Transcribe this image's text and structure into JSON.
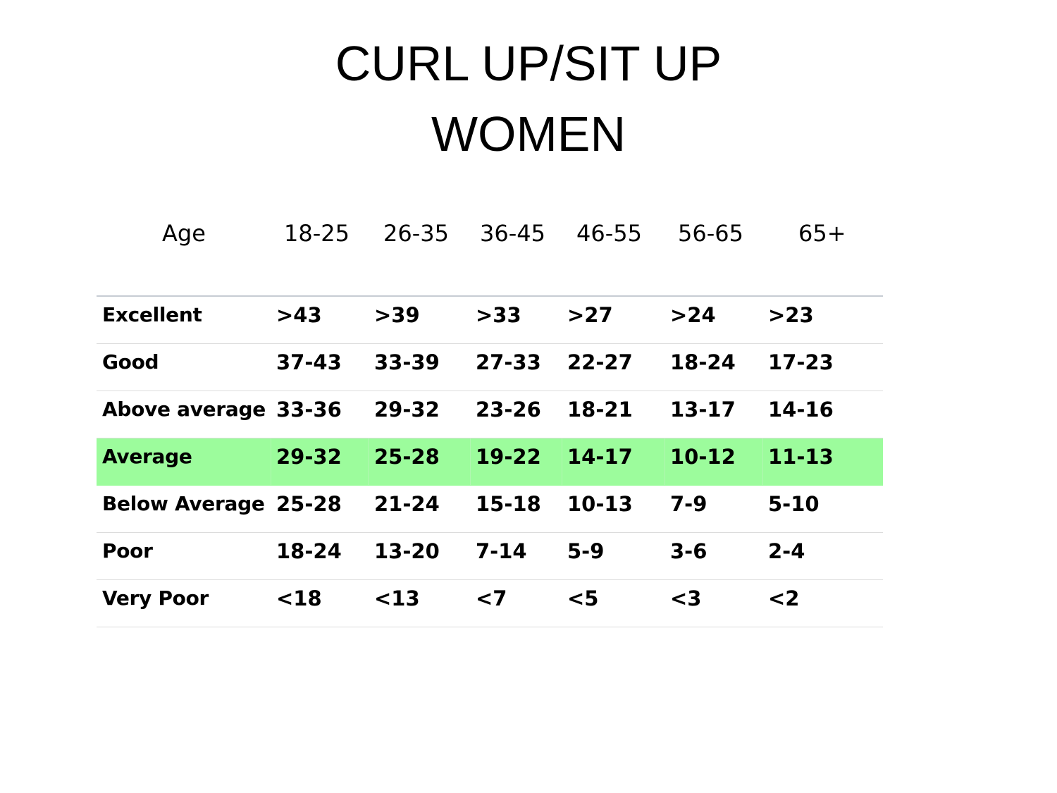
{
  "title": {
    "line1": "CURL UP/SIT UP",
    "line2": "WOMEN"
  },
  "age_header": {
    "label": "Age",
    "groups": [
      "18-25",
      "26-35",
      "36-45",
      "46-55",
      "56-65",
      "65+"
    ]
  },
  "table": {
    "highlight_color": "#9cfc9c",
    "rows": [
      {
        "label": "Excellent",
        "values": [
          ">43",
          ">39",
          ">33",
          ">27",
          ">24",
          ">23"
        ]
      },
      {
        "label": "Good",
        "values": [
          "37-43",
          "33-39",
          "27-33",
          "22-27",
          "18-24",
          "17-23"
        ]
      },
      {
        "label": "Above average",
        "values": [
          "33-36",
          "29-32",
          "23-26",
          "18-21",
          "13-17",
          "14-16"
        ]
      },
      {
        "label": "Average",
        "values": [
          "29-32",
          "25-28",
          "19-22",
          "14-17",
          "10-12",
          "11-13"
        ],
        "highlighted": true
      },
      {
        "label": "Below Average",
        "values": [
          "25-28",
          "21-24",
          "15-18",
          "10-13",
          "7-9",
          "5-10"
        ]
      },
      {
        "label": "Poor",
        "values": [
          "18-24",
          "13-20",
          "7-14",
          "5-9",
          "3-6",
          "2-4"
        ]
      },
      {
        "label": "Very Poor",
        "values": [
          "<18",
          "<13",
          "<7",
          "<5",
          "<3",
          "<2"
        ]
      }
    ]
  }
}
